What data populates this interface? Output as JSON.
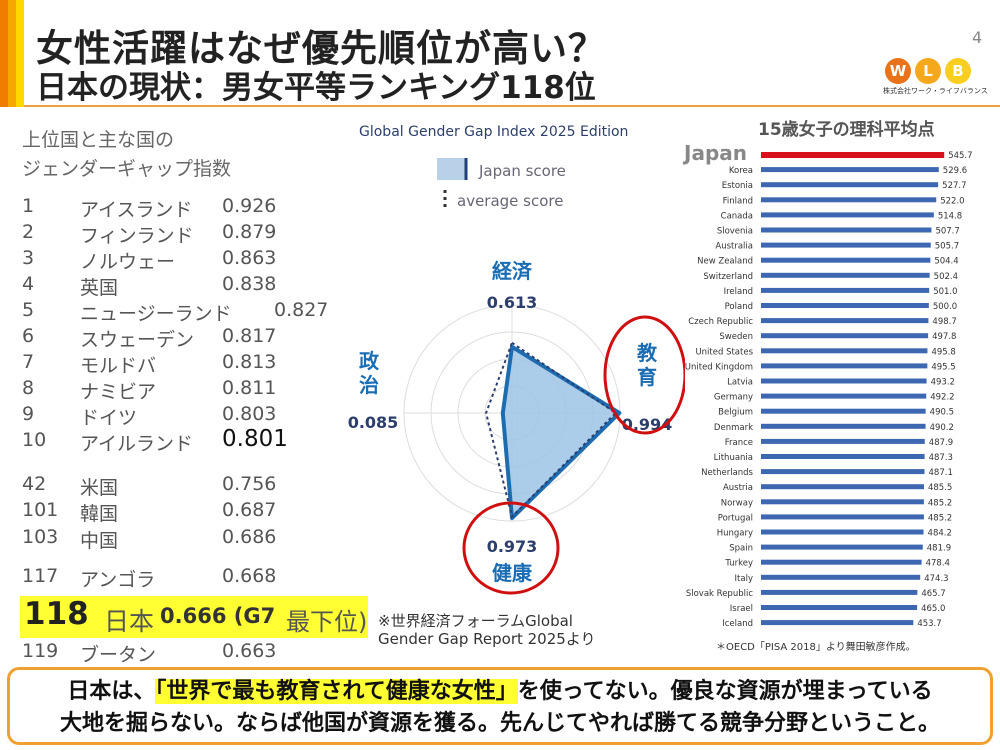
{
  "header": {
    "title": "女性活躍はなぜ優先順位が高い？",
    "subtitle": "日本の現状：男女平等ランキング118位",
    "page_number": "4",
    "logo_letters": [
      "W",
      "L",
      "B"
    ],
    "logo_text": "株式会社ワーク・ライフバランス"
  },
  "ranking": {
    "heading_line1": "上位国と主な国の",
    "heading_line2": "ジェンダーギャップ指数",
    "rows": [
      {
        "rank": "1",
        "country": "アイスランド",
        "score": "0.926"
      },
      {
        "rank": "2",
        "country": "フィンランド",
        "score": "0.879"
      },
      {
        "rank": "3",
        "country": "ノルウェー",
        "score": "0.863"
      },
      {
        "rank": "4",
        "country": "英国",
        "score": "0.838"
      },
      {
        "rank": "5",
        "country": "ニュージーランド",
        "score": "0.827"
      },
      {
        "rank": "6",
        "country": "スウェーデン",
        "score": "0.817"
      },
      {
        "rank": "7",
        "country": "モルドバ",
        "score": "0.813"
      },
      {
        "rank": "8",
        "country": "ナミビア",
        "score": "0.811"
      },
      {
        "rank": "9",
        "country": "ドイツ",
        "score": "0.803"
      },
      {
        "rank": "10",
        "country": "アイルランド",
        "score": "0.801"
      },
      {
        "rank": "42",
        "country": "米国",
        "score": "0.756"
      },
      {
        "rank": "101",
        "country": "韓国",
        "score": "0.687"
      },
      {
        "rank": "103",
        "country": "中国",
        "score": "0.686"
      },
      {
        "rank": "117",
        "country": "アンゴラ",
        "score": "0.668"
      },
      {
        "rank": "119",
        "country": "ブータン",
        "score": "0.663"
      }
    ],
    "japan": {
      "rank": "118",
      "country": "日本",
      "score": "0.666 (G7",
      "suffix": "最下位)"
    }
  },
  "chart_data": [
    {
      "type": "radar",
      "title": "Global Gender Gap Index 2025 Edition",
      "legend": [
        "Japan score",
        "average score"
      ],
      "axes": [
        "経済",
        "教育",
        "健康",
        "政治"
      ],
      "series": [
        {
          "name": "Japan score",
          "values": [
            0.613,
            0.994,
            0.973,
            0.085
          ]
        },
        {
          "name": "average score",
          "values": [
            0.65,
            0.96,
            0.96,
            0.24
          ]
        }
      ],
      "labels": [
        "0.613",
        "0.994",
        "0.973",
        "0.085"
      ],
      "range": [
        0,
        1
      ],
      "highlight_color": "#d01010"
    },
    {
      "type": "bar",
      "title": "15歳女子の理科平均点",
      "highlight_label": "Japan",
      "source": "＊OECD「PISA 2018」より舞田敏彦作成。",
      "categories": [
        "Japan",
        "Korea",
        "Estonia",
        "Finland",
        "Canada",
        "Slovenia",
        "Australia",
        "New Zealand",
        "Switzerland",
        "Ireland",
        "Poland",
        "Czech Republic",
        "Sweden",
        "United States",
        "United Kingdom",
        "Latvia",
        "Germany",
        "Belgium",
        "Denmark",
        "France",
        "Lithuania",
        "Netherlands",
        "Austria",
        "Norway",
        "Portugal",
        "Hungary",
        "Spain",
        "Turkey",
        "Italy",
        "Slovak Republic",
        "Israel",
        "Iceland"
      ],
      "values": [
        545.7,
        529.6,
        527.7,
        522.0,
        514.8,
        507.7,
        505.7,
        504.4,
        502.4,
        501.0,
        500.0,
        498.7,
        497.8,
        495.8,
        495.5,
        493.2,
        492.2,
        490.5,
        490.2,
        487.9,
        487.3,
        487.1,
        485.5,
        485.2,
        485.2,
        484.2,
        481.9,
        478.4,
        474.3,
        465.7,
        465.0,
        453.7
      ],
      "xlim": [
        0,
        560
      ],
      "colors": {
        "highlight": "#d7121b",
        "bar": "#3e67b1"
      }
    }
  ],
  "source_note": {
    "line1": "※世界経済フォーラムGlobal",
    "line2": "Gender Gap Report 2025より"
  },
  "conclusion": {
    "pre": "日本は、",
    "highlight": "「世界で最も教育されて健康な女性」",
    "post": "を使ってない。優良な資源が埋まっている",
    "line2": "大地を掘らない。ならば他国が資源を獲る。先んじてやれば勝てる競争分野ということ。"
  }
}
